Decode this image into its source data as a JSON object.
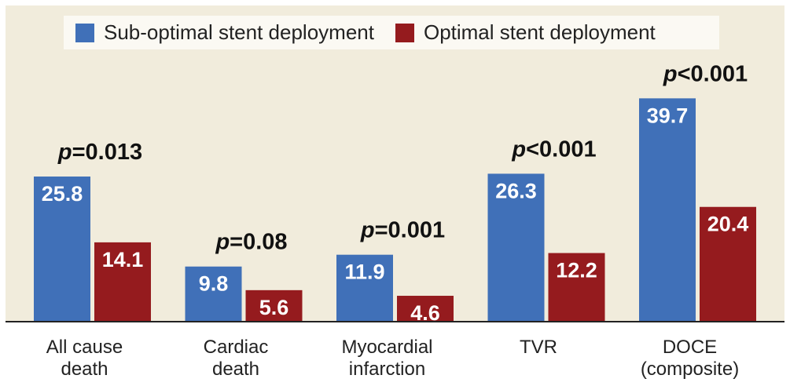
{
  "chart_data": {
    "type": "bar",
    "categories": [
      [
        "All cause",
        "death"
      ],
      [
        "Cardiac",
        "death"
      ],
      [
        "Myocardial",
        "infarction"
      ],
      [
        "TVR"
      ],
      [
        "DOCE",
        "(composite)"
      ]
    ],
    "series": [
      {
        "name": "Sub-optimal stent deployment",
        "color": "#4070b8",
        "values": [
          25.8,
          9.8,
          11.9,
          26.3,
          39.7
        ]
      },
      {
        "name": "Optimal stent deployment",
        "color": "#951b1e",
        "values": [
          14.1,
          5.6,
          4.6,
          12.2,
          20.4
        ]
      }
    ],
    "annotations": [
      {
        "p": "p",
        "rest": "=0.013"
      },
      {
        "p": "p",
        "rest": "=0.08"
      },
      {
        "p": "p",
        "rest": "=0.001"
      },
      {
        "p": "p",
        "rest": "<0.001"
      },
      {
        "p": "p",
        "rest": "<0.001"
      }
    ],
    "ylim": [
      0,
      45
    ],
    "background": "#f1ecdc"
  }
}
